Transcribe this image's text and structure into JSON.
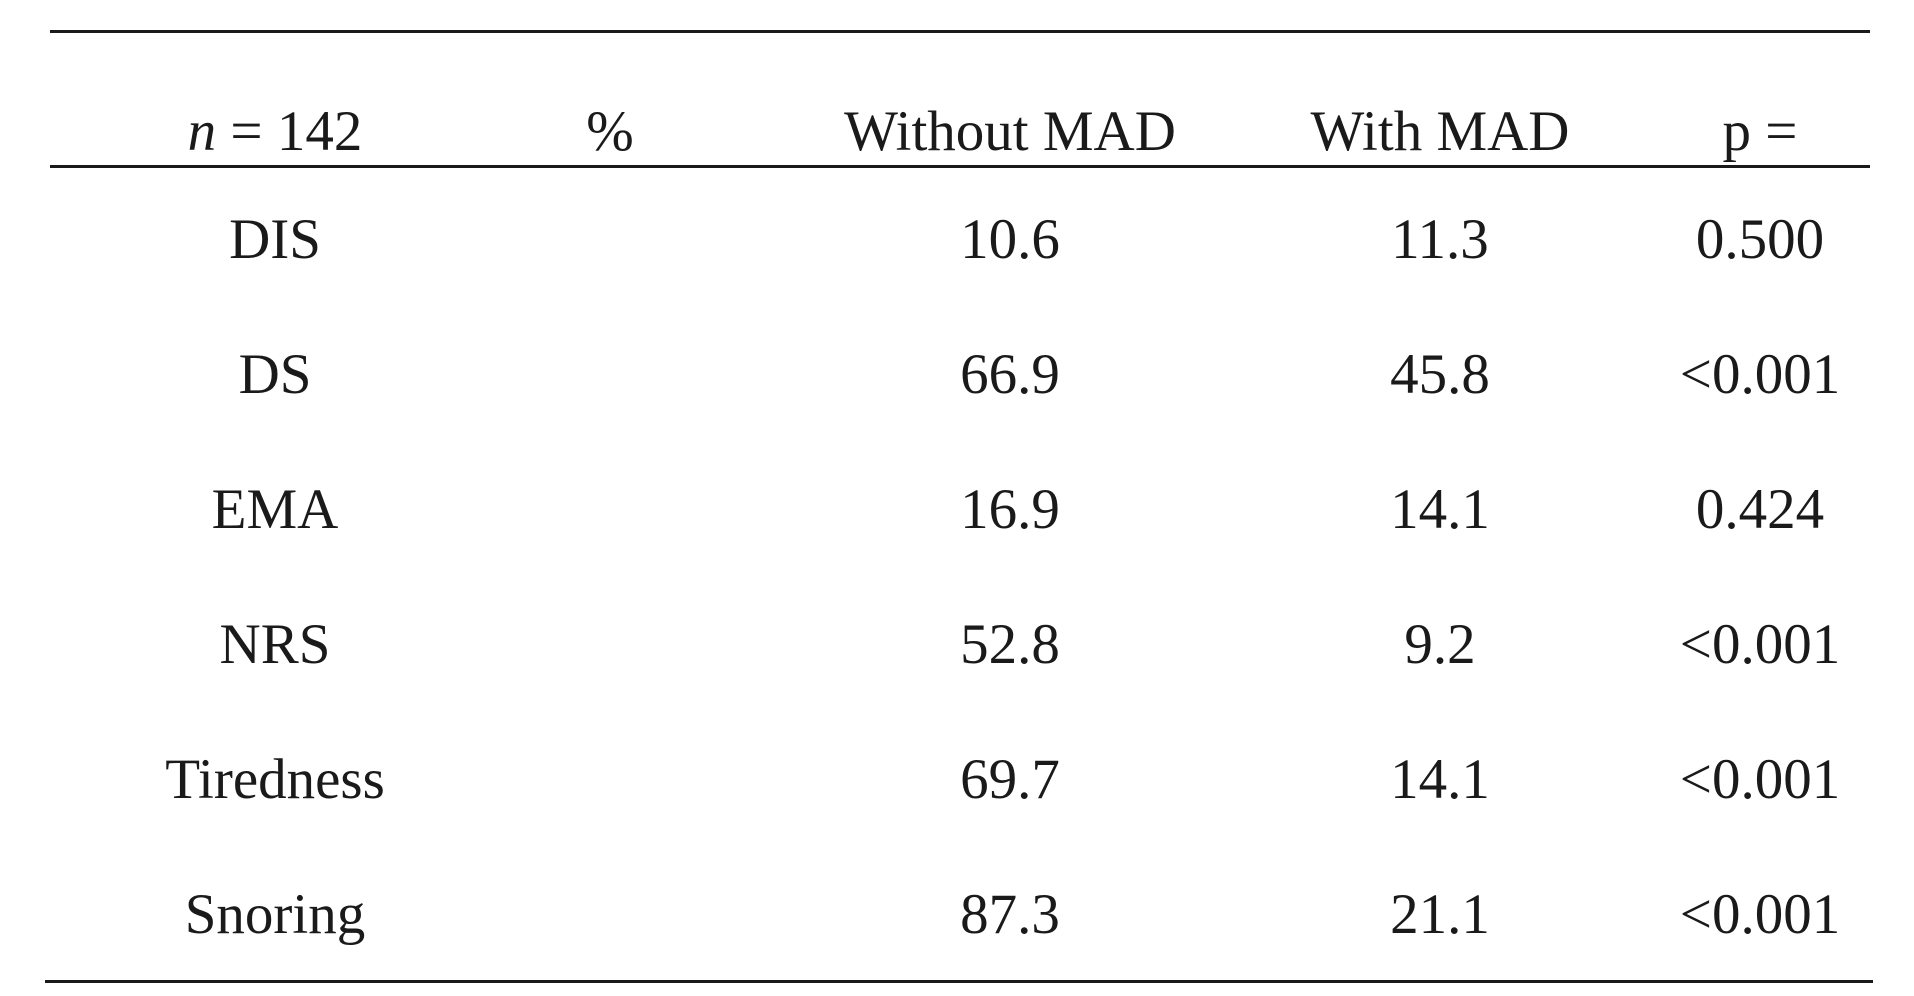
{
  "table": {
    "header": {
      "n_var": "n",
      "n_rest": " = 142",
      "percent": "%",
      "without_mad": "Without MAD",
      "with_mad": "With MAD",
      "p": "p ="
    },
    "rows": [
      {
        "label": "DIS",
        "without": "10.6",
        "with": "11.3",
        "p": "0.500"
      },
      {
        "label": "DS",
        "without": "66.9",
        "with": "45.8",
        "p": "<0.001"
      },
      {
        "label": "EMA",
        "without": "16.9",
        "with": "14.1",
        "p": "0.424"
      },
      {
        "label": "NRS",
        "without": "52.8",
        "with": "9.2",
        "p": "<0.001"
      },
      {
        "label": "Tiredness",
        "without": "69.7",
        "with": "14.1",
        "p": "<0.001"
      },
      {
        "label": "Snoring",
        "without": "87.3",
        "with": "21.1",
        "p": "<0.001"
      }
    ]
  }
}
